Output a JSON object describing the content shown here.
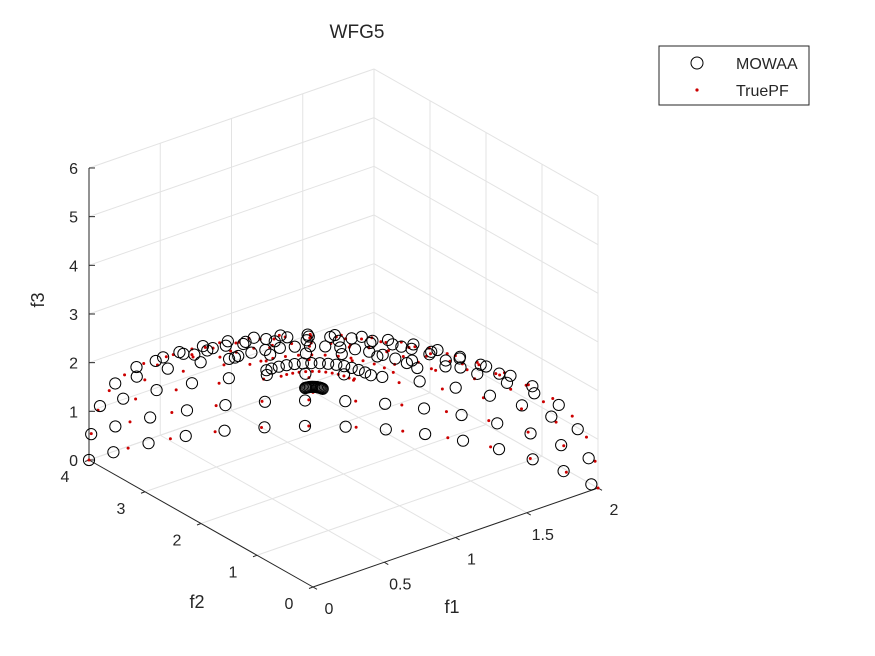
{
  "chart_data": {
    "type": "scatter3d",
    "title": "WFG5",
    "xlabel": "f1",
    "ylabel": "f2",
    "zlabel": "f3",
    "xlim": [
      0,
      2
    ],
    "ylim": [
      0,
      4
    ],
    "zlim": [
      0,
      6
    ],
    "xticks": [
      "0",
      "0.5",
      "1",
      "1.5",
      "2"
    ],
    "yticks": [
      "0",
      "1",
      "2",
      "3",
      "4"
    ],
    "zticks": [
      "0",
      "1",
      "2",
      "3",
      "4",
      "5",
      "6"
    ],
    "grid": true,
    "legend_position": "top-right",
    "series": [
      {
        "name": "MOWAA",
        "marker": "open-circle",
        "color": "#000000",
        "n_theta": 15,
        "n_phi": 10,
        "offset": [
          0.26,
          0.2
        ]
      },
      {
        "name": "TruePF",
        "marker": "dot",
        "color": "#cc0000",
        "n_theta": 13,
        "n_phi": 12,
        "offset": [
          0,
          0
        ]
      }
    ],
    "surface_note": "points lie on ellipsoid (f1/2)^2 + (f2/4)^2 + (f3/4)^2 = 1, f >= 0"
  }
}
